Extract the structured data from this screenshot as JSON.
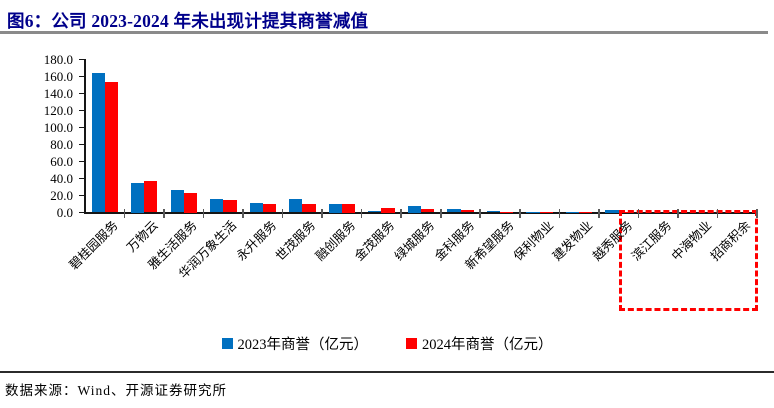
{
  "page": {
    "title": "图6：公司 2023-2024 年未出现计提其商誉减值",
    "source_note": "数据来源：Wind、开源证券研究所"
  },
  "chart_data": {
    "type": "bar",
    "title": "公司 2023-2024 年未出现计提其商誉减值",
    "categories": [
      "碧桂园服务",
      "万物云",
      "雅生活服务",
      "华润万象生活",
      "永升服务",
      "世茂服务",
      "融创服务",
      "金茂服务",
      "绿城服务",
      "金科服务",
      "新希望服务",
      "保利物业",
      "建发物业",
      "越秀服务",
      "滨江服务",
      "中海物业",
      "招商积余"
    ],
    "series": [
      {
        "name": "2023年商誉（亿元）",
        "color": "#0070C0",
        "values": [
          164,
          35,
          26.5,
          15.5,
          11,
          16,
          10,
          2,
          7.5,
          4.5,
          1.5,
          0.4,
          0.4,
          2.5,
          0,
          0,
          0
        ]
      },
      {
        "name": "2024年商誉（亿元）",
        "color": "#FF0000",
        "values": [
          154,
          36.5,
          22.5,
          14.5,
          10.5,
          10.5,
          10,
          5,
          4,
          3,
          1,
          0.4,
          0.4,
          0.2,
          0,
          0,
          0
        ]
      }
    ],
    "xlabel": "",
    "ylabel": "",
    "ylim": [
      0,
      180
    ],
    "ytick_step": 20,
    "ytick_format": "one-decimal",
    "grid": false,
    "legend_position": "bottom",
    "annotation": {
      "type": "dashed-box",
      "color": "#FF0000",
      "note": "highlights companies with no goodwill shown",
      "categories_covered": [
        "滨江服务",
        "中海物业",
        "招商积余"
      ]
    }
  }
}
